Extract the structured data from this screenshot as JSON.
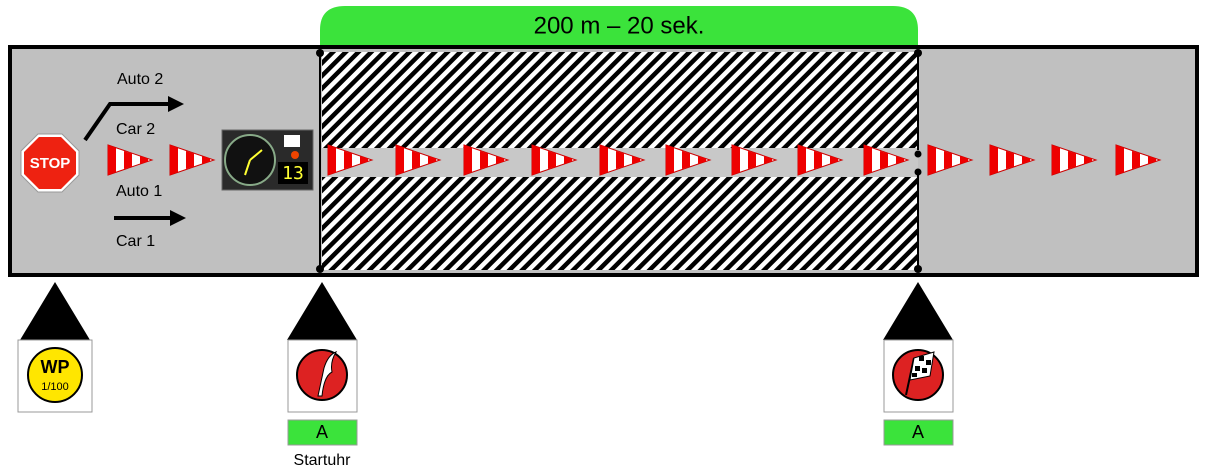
{
  "header": {
    "title": "200 m – 20 sek."
  },
  "lanes": [
    {
      "label_de": "Auto 2",
      "label_en": "Car 2"
    },
    {
      "label_de": "Auto 1",
      "label_en": "Car 1"
    }
  ],
  "stop_sign": "STOP",
  "clock": {
    "display": "13"
  },
  "markers": [
    {
      "icon": "WP",
      "icon_sub": "1/100"
    },
    {
      "tag": "A",
      "caption": "Startuhr"
    },
    {
      "tag": "A"
    }
  ]
}
